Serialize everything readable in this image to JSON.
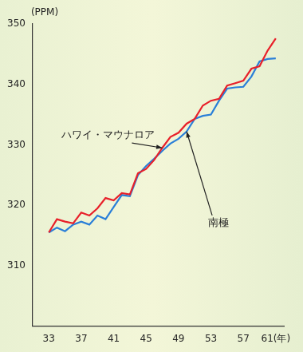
{
  "chart_data": {
    "type": "line",
    "y_label": "(PPM)",
    "x": [
      33,
      34,
      35,
      36,
      37,
      38,
      39,
      40,
      41,
      42,
      43,
      44,
      45,
      46,
      47,
      48,
      49,
      50,
      51,
      52,
      53,
      54,
      55,
      56,
      57,
      58,
      59,
      60,
      61
    ],
    "series": [
      {
        "name": "ハワイ・マウナロア",
        "color": "#e8202a",
        "values": [
          315.5,
          317.7,
          317.3,
          317.0,
          318.8,
          318.3,
          319.5,
          321.2,
          320.8,
          322.0,
          321.8,
          325.3,
          326.0,
          327.5,
          329.5,
          331.3,
          332.0,
          333.5,
          334.3,
          336.5,
          337.3,
          337.6,
          339.8,
          340.2,
          340.6,
          342.6,
          343.0,
          345.6,
          347.6
        ]
      },
      {
        "name": "南極",
        "color": "#2a7fd8",
        "values": [
          315.5,
          316.3,
          315.7,
          316.8,
          317.3,
          316.8,
          318.3,
          317.7,
          319.7,
          321.7,
          321.5,
          325.0,
          326.5,
          327.7,
          329.0,
          330.2,
          331.0,
          332.2,
          334.3,
          334.8,
          335.0,
          337.3,
          339.3,
          339.5,
          339.6,
          341.3,
          343.8,
          344.2,
          344.3
        ]
      }
    ],
    "xlim": [
      31,
      62
    ],
    "xticks": [
      33,
      37,
      41,
      45,
      49,
      53,
      57,
      {
        "value": 61,
        "label": "61(年)"
      }
    ],
    "ylim": [
      300,
      350
    ],
    "yticks": [
      310,
      320,
      330,
      340,
      350
    ],
    "grid": false
  }
}
